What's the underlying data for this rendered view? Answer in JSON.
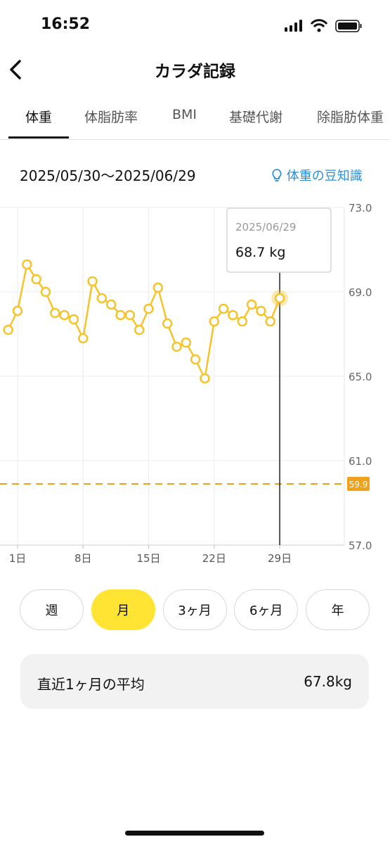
{
  "status_bar": {
    "time": "16:52"
  },
  "header": {
    "title": "カラダ記録"
  },
  "tabs": {
    "items": [
      "体重",
      "体脂肪率",
      "BMI",
      "基礎代謝",
      "除脂肪体重"
    ],
    "selected": 0
  },
  "date_range": "2025/05/30〜2025/06/29",
  "tips_link": "体重の豆知識",
  "chart_data": {
    "type": "line",
    "x": [
      0,
      1,
      2,
      3,
      4,
      5,
      6,
      7,
      8,
      9,
      10,
      11,
      12,
      13,
      14,
      15,
      16,
      17,
      18,
      19,
      20,
      21,
      22,
      23,
      24,
      25,
      26,
      27,
      28,
      29
    ],
    "values": [
      67.2,
      68.1,
      70.3,
      69.6,
      69.0,
      68.0,
      67.9,
      67.7,
      66.8,
      69.5,
      68.7,
      68.4,
      67.9,
      67.9,
      67.2,
      68.2,
      69.2,
      67.5,
      66.4,
      66.6,
      65.8,
      64.9,
      67.6,
      68.2,
      67.9,
      67.6,
      68.4,
      68.1,
      67.6,
      68.7
    ],
    "color": "#f5c42c",
    "xlim": [
      -0.875,
      35.9
    ],
    "xticks": [
      {
        "value": 1,
        "label": "1日"
      },
      {
        "value": 8,
        "label": "8日"
      },
      {
        "value": 15,
        "label": "15日"
      },
      {
        "value": 22,
        "label": "22日"
      },
      {
        "value": 29,
        "label": "29日"
      }
    ],
    "ylim": [
      57,
      73
    ],
    "yticks": [
      {
        "value": 57,
        "label": "57.0"
      },
      {
        "value": 61,
        "label": "61.0"
      },
      {
        "value": 65,
        "label": "65.0"
      },
      {
        "value": 69,
        "label": "69.0"
      },
      {
        "value": 73,
        "label": "73.0"
      }
    ],
    "grid": true,
    "target_line": {
      "value": 59.9,
      "color": "#f0a21c"
    },
    "tooltip": {
      "date": "2025/06/29",
      "value_label": "68.7 kg"
    }
  },
  "period_buttons": {
    "items": [
      "週",
      "月",
      "3ヶ月",
      "6ヶ月",
      "年"
    ],
    "selected": 1
  },
  "summary": {
    "label": "直近1ヶ月の平均",
    "value": "67.8kg"
  }
}
